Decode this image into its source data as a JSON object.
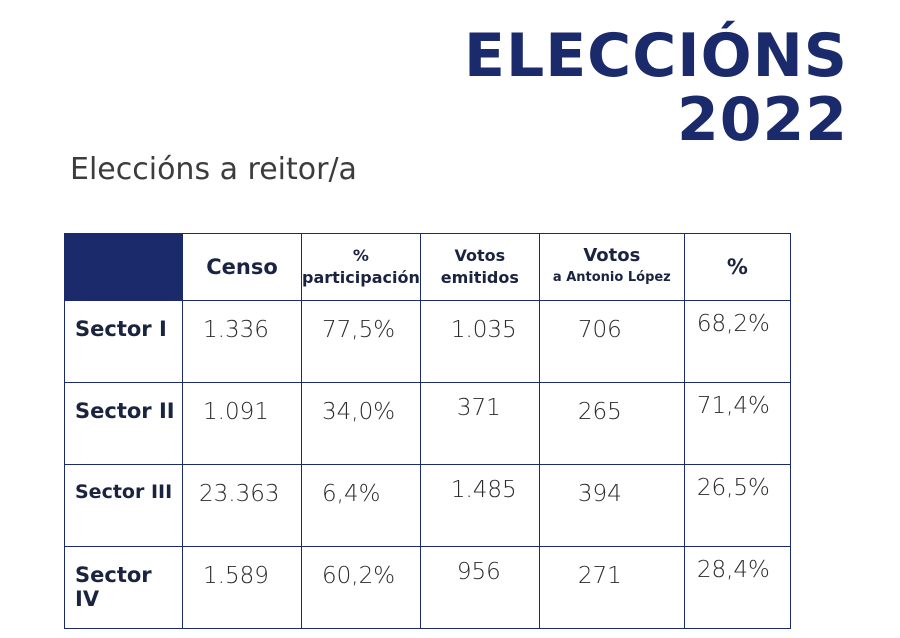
{
  "header": {
    "title_line1": "ELECCIÓNS",
    "title_line2": "2022",
    "subtitle": "Eleccións a reitor/a"
  },
  "table": {
    "columns": [
      "Censo",
      "%",
      "participación",
      "Votos",
      "emitidos",
      "Votos",
      "a Antonio López",
      "%"
    ],
    "rows": [
      {
        "label": "Sector I",
        "censo": "1.336",
        "participacion": "77,5%",
        "emitidos": "1.035",
        "votos_lopez": "706",
        "pct": "68,2%"
      },
      {
        "label": "Sector II",
        "censo": "1.091",
        "participacion": "34,0%",
        "emitidos": "371",
        "votos_lopez": "265",
        "pct": "71,4%"
      },
      {
        "label": "Sector III",
        "censo": "23.363",
        "participacion": "6,4%",
        "emitidos": "1.485",
        "votos_lopez": "394",
        "pct": "26,5%"
      },
      {
        "label": "Sector IV",
        "censo": "1.589",
        "participacion": "60,2%",
        "emitidos": "956",
        "votos_lopez": "271",
        "pct": "28,4%"
      }
    ]
  },
  "colors": {
    "brand_navy": "#1b2a6b"
  }
}
